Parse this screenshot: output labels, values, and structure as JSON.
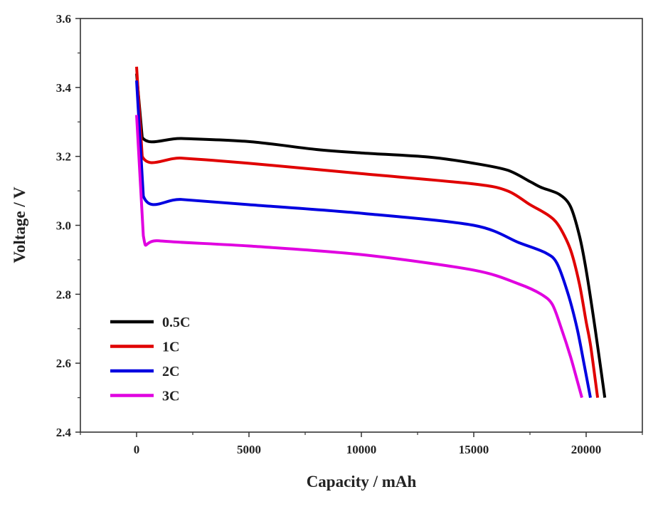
{
  "chart_data": {
    "type": "line",
    "title": "",
    "xlabel": "Capacity / mAh",
    "ylabel": "Voltage / V",
    "xlim": [
      -2500,
      22500
    ],
    "ylim": [
      2.4,
      3.6
    ],
    "xticks": [
      0,
      5000,
      10000,
      15000,
      20000
    ],
    "xtick_labels": [
      "0",
      "5000",
      "10000",
      "15000",
      "20000"
    ],
    "yticks": [
      2.4,
      2.6,
      2.8,
      3.0,
      3.2,
      3.4,
      3.6
    ],
    "ytick_labels": [
      "2.4",
      "2.6",
      "2.8",
      "3.0",
      "3.2",
      "3.4",
      "3.6"
    ],
    "grid": false,
    "legend_position": "bottom-left",
    "series": [
      {
        "name": "0.5C",
        "color": "#000000",
        "x": [
          0,
          250,
          2000,
          5000,
          8000,
          10000,
          13000,
          15000,
          16500,
          17500,
          18000,
          18800,
          19300,
          19700,
          20000,
          20400,
          20830
        ],
        "y": [
          3.44,
          3.255,
          3.252,
          3.243,
          3.22,
          3.21,
          3.198,
          3.18,
          3.16,
          3.127,
          3.11,
          3.09,
          3.055,
          2.97,
          2.87,
          2.7,
          2.5
        ]
      },
      {
        "name": "1C",
        "color": "#e00000",
        "x": [
          0,
          250,
          2000,
          5000,
          10000,
          15000,
          16500,
          17500,
          18300,
          18770,
          19300,
          19700,
          20000,
          20200,
          20510
        ],
        "y": [
          3.46,
          3.2,
          3.195,
          3.18,
          3.15,
          3.12,
          3.1,
          3.06,
          3.03,
          3.0,
          2.93,
          2.83,
          2.72,
          2.65,
          2.5
        ]
      },
      {
        "name": "2C",
        "color": "#0000e0",
        "x": [
          0,
          300,
          2000,
          5000,
          10000,
          15000,
          17000,
          18200,
          18700,
          19200,
          19600,
          19900,
          20190
        ],
        "y": [
          3.42,
          3.085,
          3.075,
          3.06,
          3.035,
          3.0,
          2.95,
          2.92,
          2.89,
          2.8,
          2.7,
          2.6,
          2.5
        ]
      },
      {
        "name": "3C",
        "color": "#e000e0",
        "x": [
          0,
          300,
          1000,
          5000,
          10000,
          15000,
          17000,
          18000,
          18500,
          18900,
          19300,
          19600,
          19810
        ],
        "y": [
          3.32,
          2.97,
          2.955,
          2.94,
          2.915,
          2.87,
          2.83,
          2.8,
          2.77,
          2.7,
          2.62,
          2.55,
          2.5
        ]
      }
    ]
  }
}
